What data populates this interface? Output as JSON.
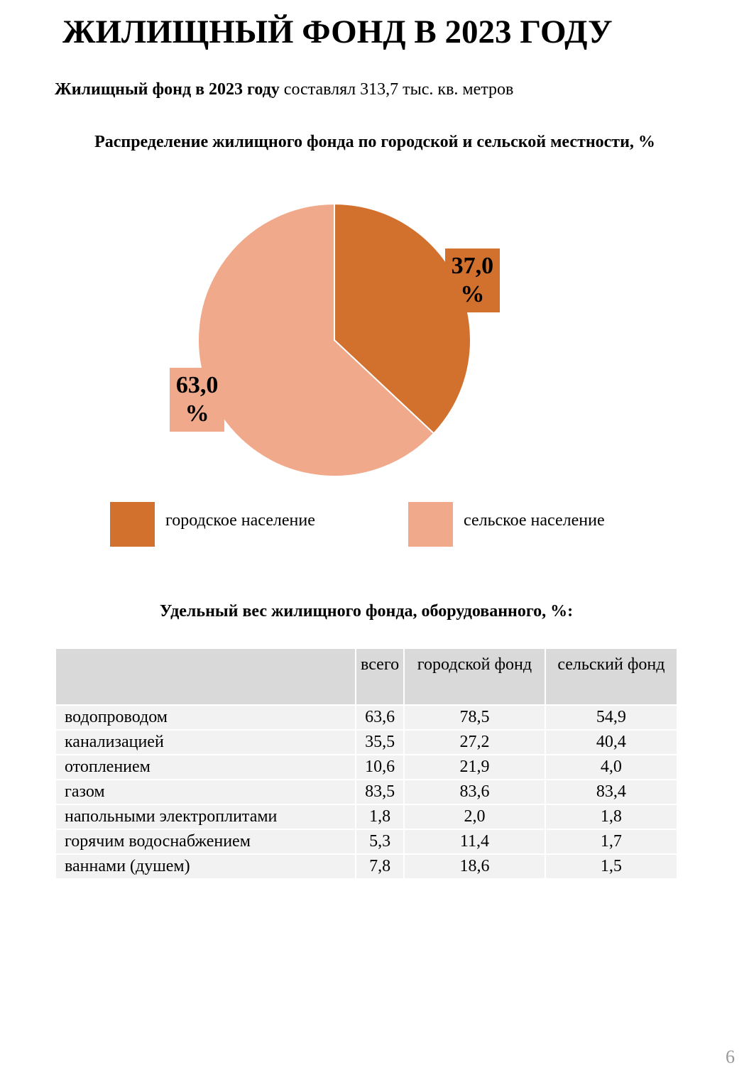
{
  "header": {
    "title": "ЖИЛИЩНЫЙ ФОНД В 2023 ГОДУ",
    "subtitle_bold": "Жилищный фонд в 2023 году",
    "subtitle_rest": "составлял 313,7 тыс. кв. метров"
  },
  "chart_data": {
    "type": "pie",
    "title": "Распределение жилищного фонда по городской и сельской местности, %",
    "categories": [
      "городское население",
      "сельское население"
    ],
    "values": [
      37,
      63
    ],
    "value_labels": [
      "37,0 %",
      "63,0 %"
    ],
    "colors": [
      "#d2702e",
      "#f0a98a"
    ]
  },
  "table": {
    "title": "Удельный вес жилищного фонда, оборудованного, %:",
    "columns": [
      "всего",
      "городской фонд",
      "сельский фонд"
    ],
    "rows": [
      [
        "водопроводом",
        "63,6",
        "78,5",
        "54,9"
      ],
      [
        "канализацией",
        "35,5",
        "27,2",
        "40,4"
      ],
      [
        "отоплением",
        "10,6",
        "21,9",
        "4,0"
      ],
      [
        "газом",
        "83,5",
        "83,6",
        "83,4"
      ],
      [
        "напольными электроплитами",
        "1,8",
        "2,0",
        "1,8"
      ],
      [
        "горячим водоснабжением",
        "5,3",
        "11,4",
        "1,7"
      ],
      [
        "ваннами (душем)",
        "7,8",
        "18,6",
        "1,5"
      ]
    ]
  },
  "page_number": "6"
}
